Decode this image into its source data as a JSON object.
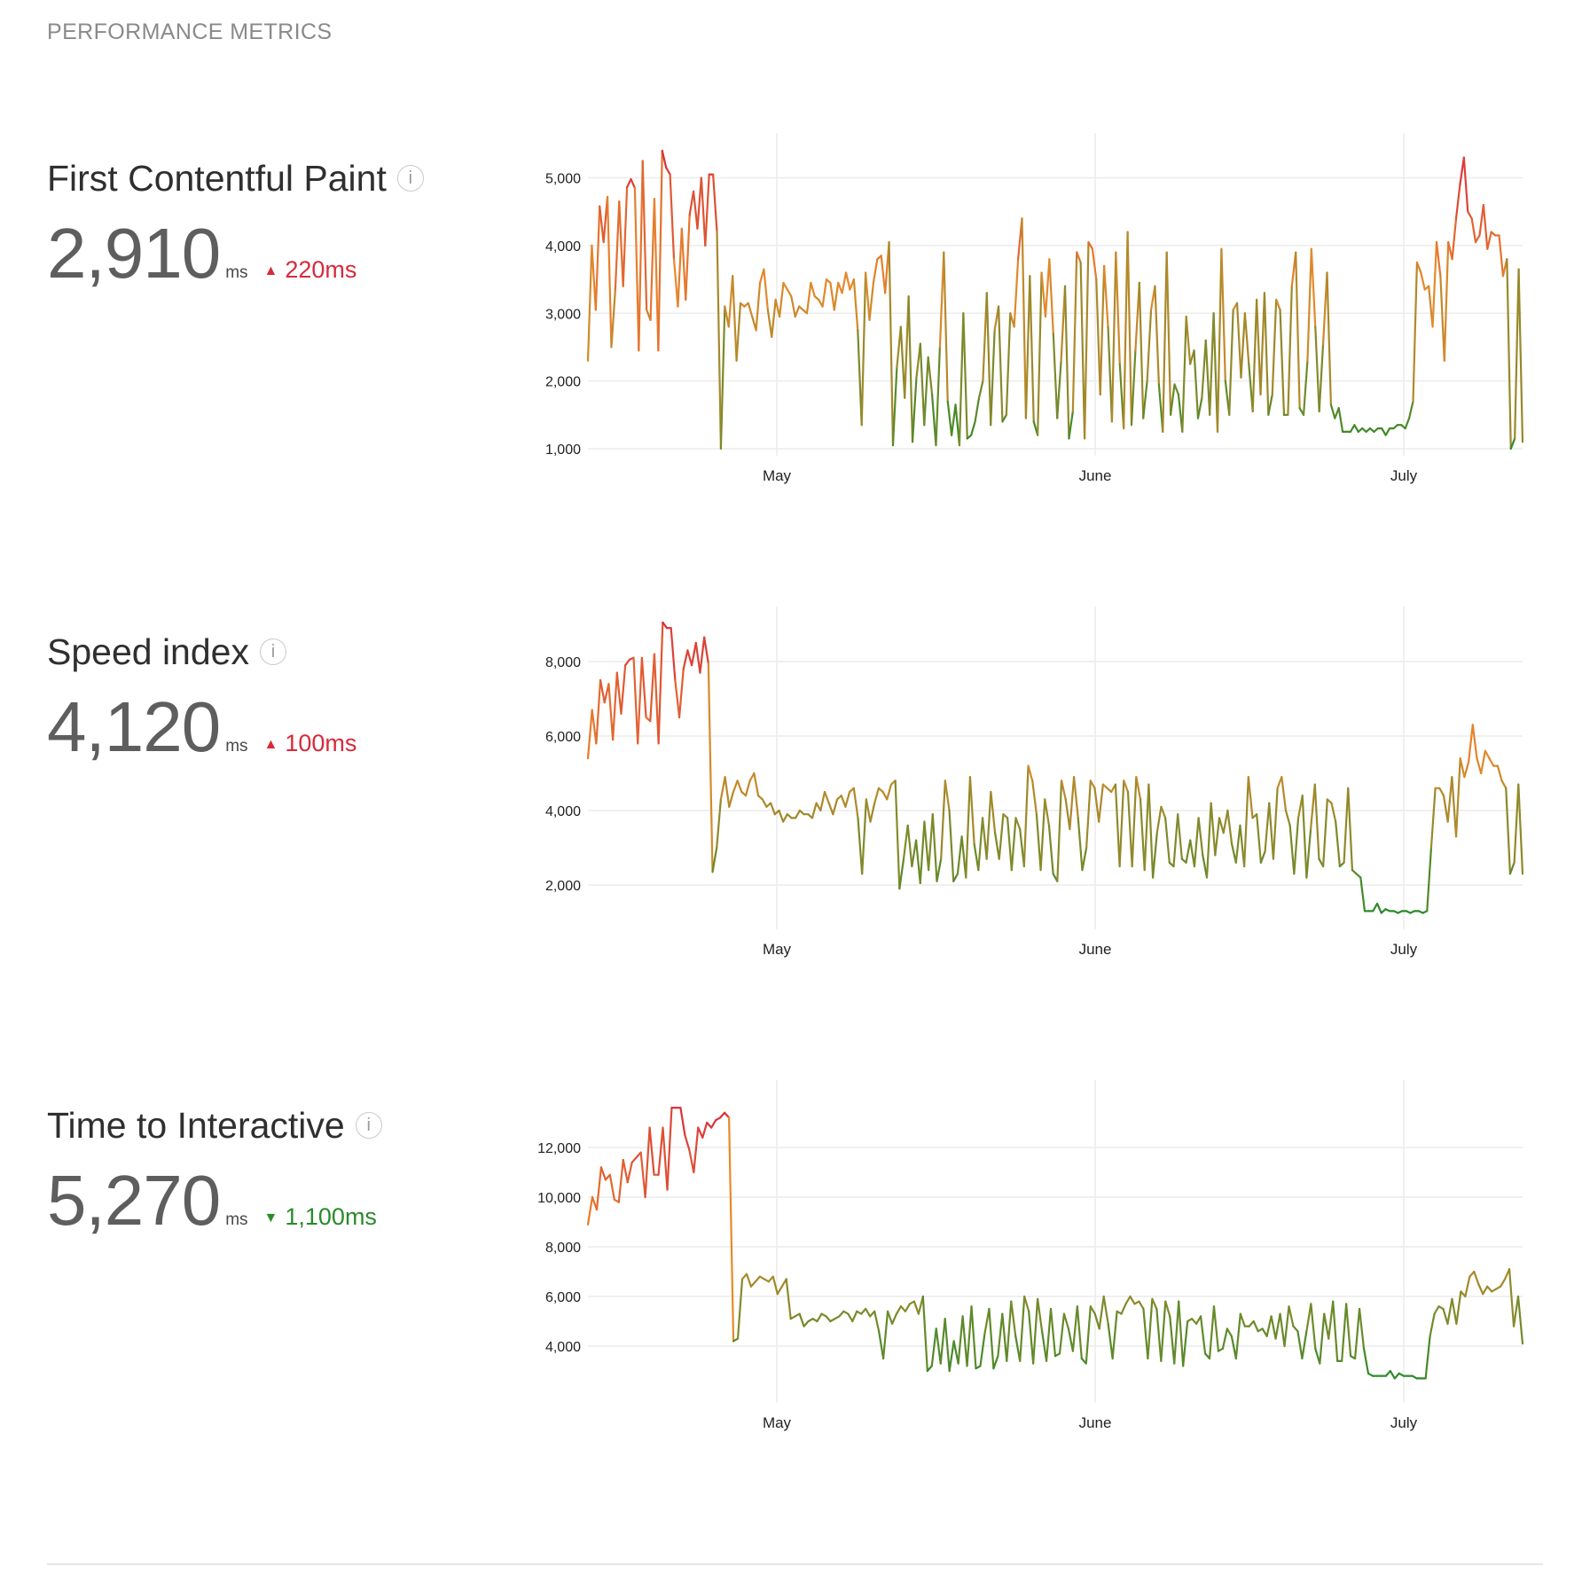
{
  "header": {
    "title": "PERFORMANCE METRICS"
  },
  "metrics": [
    {
      "id": "fcp",
      "name": "First Contentful Paint",
      "info_icon": "info-icon",
      "value": "2,910",
      "unit": "ms",
      "delta": {
        "direction": "up",
        "text": "220ms",
        "color": "#d8293b",
        "icon": "triangle-up-icon"
      },
      "chart_data": {
        "type": "line",
        "x_ticks": [
          "May",
          "June",
          "July"
        ],
        "y_ticks": [
          "1,000",
          "2,000",
          "3,000",
          "4,000",
          "5,000"
        ],
        "ylim": [
          1000,
          5400
        ],
        "color_scale": {
          "low": "#2a8a2a",
          "mid": "#e8892a",
          "high": "#d8293b"
        },
        "series": [
          {
            "values": [
              2300,
              4000,
              3050,
              4580,
              4050,
              4720,
              2500,
              3350,
              4650,
              3400,
              4860,
              4980,
              4850,
              2450,
              5250,
              3050,
              2900,
              4690,
              2450,
              5400,
              5150,
              5050,
              3800,
              3100,
              4250,
              3200,
              4450,
              4800,
              4250,
              5000,
              4000,
              5050,
              5050,
              4200,
              1000,
              3100,
              2800,
              3550,
              2300,
              3150,
              3100,
              3150,
              2950,
              2750,
              3450,
              3650,
              3050,
              2650,
              3200,
              2950,
              3450,
              3350,
              3250,
              2950,
              3100,
              3050,
              3000,
              3450,
              3250,
              3200,
              3100,
              3500,
              3450,
              3050,
              3450,
              3300,
              3600,
              3350,
              3500,
              2750,
              1350,
              3600,
              2900,
              3450,
              3800,
              3850,
              3300,
              4050,
              1050,
              2200,
              2800,
              1750,
              3250,
              1100,
              2050,
              2550,
              1350,
              2350,
              1800,
              1050,
              2500,
              3900,
              1700,
              1200,
              1650,
              1050,
              3000,
              1150,
              1200,
              1400,
              1750,
              2000,
              3300,
              1350,
              2750,
              3100,
              1400,
              1500,
              3000,
              2800,
              3800,
              4400,
              1450,
              3550,
              1400,
              1200,
              3600,
              2950,
              3800,
              2700,
              1450,
              2300,
              3400,
              1150,
              1550,
              3900,
              3750,
              1150,
              4050,
              3950,
              3500,
              1800,
              3700,
              2800,
              1400,
              3900,
              2250,
              1300,
              4200,
              1350,
              2450,
              3450,
              1450,
              2000,
              3050,
              3400,
              1950,
              1250,
              3900,
              1500,
              1950,
              1800,
              1250,
              2950,
              2250,
              2450,
              1450,
              1750,
              2600,
              1500,
              3000,
              1250,
              3950,
              2000,
              1500,
              3050,
              3150,
              2050,
              3000,
              2250,
              1550,
              3200,
              1800,
              3300,
              1500,
              1800,
              3200,
              3050,
              1500,
              1500,
              3400,
              3900,
              1600,
              1500,
              2300,
              3950,
              2800,
              1550,
              2550,
              3600,
              1650,
              1450,
              1600,
              1250,
              1250,
              1250,
              1350,
              1250,
              1300,
              1250,
              1300,
              1250,
              1300,
              1300,
              1200,
              1300,
              1300,
              1350,
              1350,
              1300,
              1450,
              1700,
              3750,
              3600,
              3350,
              3400,
              2800,
              4050,
              3550,
              2300,
              4050,
              3800,
              4400,
              4900,
              5300,
              4500,
              4400,
              4050,
              4150,
              4600,
              3950,
              4200,
              4150,
              4150,
              3550,
              3800,
              1000,
              1150,
              3650,
              1100
            ]
          }
        ]
      }
    },
    {
      "id": "si",
      "name": "Speed index",
      "info_icon": "info-icon",
      "value": "4,120",
      "unit": "ms",
      "delta": {
        "direction": "up",
        "text": "100ms",
        "color": "#d8293b",
        "icon": "triangle-up-icon"
      },
      "chart_data": {
        "type": "line",
        "x_ticks": [
          "May",
          "June",
          "July"
        ],
        "y_ticks": [
          "2,000",
          "4,000",
          "6,000",
          "8,000"
        ],
        "ylim": [
          1000,
          9000
        ],
        "color_scale": {
          "low": "#2a8a2a",
          "mid": "#e8892a",
          "high": "#d8293b"
        },
        "series": [
          {
            "values": [
              5400,
              6700,
              5800,
              7500,
              6900,
              7400,
              5900,
              7700,
              6600,
              7900,
              8050,
              8100,
              5800,
              8100,
              6500,
              6400,
              8200,
              5800,
              9050,
              8900,
              8900,
              7500,
              6500,
              7800,
              8300,
              7900,
              8500,
              7700,
              8650,
              7950,
              2350,
              3000,
              4300,
              4900,
              4100,
              4500,
              4800,
              4500,
              4400,
              4800,
              5000,
              4400,
              4300,
              4100,
              4200,
              3900,
              4000,
              3700,
              3900,
              3800,
              3800,
              4000,
              3900,
              3900,
              3800,
              4200,
              4000,
              4500,
              4200,
              3900,
              4300,
              4400,
              4100,
              4500,
              4600,
              3800,
              2300,
              4300,
              3700,
              4200,
              4600,
              4500,
              4300,
              4700,
              4800,
              1900,
              2700,
              3600,
              2500,
              3200,
              2050,
              3700,
              2400,
              3900,
              2100,
              2700,
              4800,
              4000,
              2100,
              2300,
              3300,
              2200,
              4900,
              3100,
              2400,
              3800,
              2700,
              4500,
              3400,
              2700,
              3900,
              3800,
              2400,
              3800,
              3500,
              2500,
              5200,
              4800,
              3900,
              2400,
              4300,
              3600,
              2300,
              2100,
              4800,
              4300,
              3500,
              4900,
              3800,
              2400,
              3000,
              4800,
              4600,
              3700,
              4700,
              4600,
              4500,
              4700,
              2500,
              4800,
              4500,
              2500,
              4900,
              4300,
              2400,
              4700,
              2200,
              3400,
              4100,
              3800,
              2600,
              2500,
              3900,
              2700,
              2600,
              3200,
              2500,
              3800,
              2800,
              2200,
              4200,
              2800,
              3800,
              3400,
              4000,
              3100,
              2600,
              3600,
              2500,
              4900,
              3800,
              3900,
              2600,
              2900,
              4200,
              2700,
              4600,
              4900,
              4000,
              3600,
              2300,
              3800,
              4400,
              2200,
              3500,
              4700,
              2700,
              2500,
              4300,
              4200,
              3700,
              2500,
              2600,
              4600,
              2400,
              2300,
              2200,
              1300,
              1300,
              1300,
              1500,
              1250,
              1350,
              1300,
              1300,
              1250,
              1300,
              1300,
              1250,
              1300,
              1300,
              1250,
              1300,
              3000,
              4600,
              4600,
              4400,
              3700,
              4900,
              3300,
              5400,
              4900,
              5300,
              6300,
              5400,
              5000,
              5600,
              5400,
              5200,
              5200,
              4800,
              4600,
              2300,
              2600,
              4700,
              2300
            ]
          }
        ]
      }
    },
    {
      "id": "tti",
      "name": "Time to Interactive",
      "info_icon": "info-icon",
      "value": "5,270",
      "unit": "ms",
      "delta": {
        "direction": "down",
        "text": "1,100ms",
        "color": "#2a8a2a",
        "icon": "triangle-down-icon"
      },
      "chart_data": {
        "type": "line",
        "x_ticks": [
          "May",
          "June",
          "July"
        ],
        "y_ticks": [
          "4,000",
          "6,000",
          "8,000",
          "10,000",
          "12,000"
        ],
        "ylim": [
          2000,
          14000
        ],
        "color_scale": {
          "low": "#2a8a2a",
          "mid": "#e8892a",
          "high": "#d8293b"
        },
        "series": [
          {
            "values": [
              8900,
              10000,
              9500,
              11200,
              10700,
              10900,
              9900,
              9800,
              11500,
              10600,
              11400,
              11600,
              11800,
              10000,
              12800,
              10900,
              10900,
              12800,
              10300,
              13600,
              13600,
              13600,
              12500,
              11900,
              11000,
              12800,
              12400,
              13000,
              12800,
              13100,
              13200,
              13400,
              13200,
              4200,
              4300,
              6700,
              6900,
              6400,
              6600,
              6800,
              6700,
              6600,
              6800,
              6100,
              6400,
              6700,
              5100,
              5200,
              5300,
              4800,
              5000,
              5100,
              5000,
              5300,
              5200,
              5000,
              5100,
              5200,
              5400,
              5300,
              5000,
              5400,
              5300,
              5500,
              5200,
              5400,
              4600,
              3500,
              5400,
              4900,
              5300,
              5600,
              5400,
              5700,
              5800,
              5300,
              6000,
              3000,
              3200,
              4700,
              3300,
              5100,
              3000,
              4200,
              3300,
              5200,
              3200,
              5600,
              3100,
              3200,
              4500,
              5500,
              3100,
              3600,
              5300,
              3400,
              5800,
              4400,
              3400,
              6000,
              5400,
              3300,
              5900,
              4600,
              3400,
              5500,
              3600,
              3700,
              5300,
              4700,
              3800,
              5600,
              3500,
              3300,
              5600,
              5300,
              4700,
              6000,
              4900,
              3500,
              5400,
              5300,
              5700,
              6000,
              5700,
              5800,
              5500,
              3500,
              5900,
              5500,
              3400,
              5800,
              5200,
              3300,
              5800,
              3200,
              5000,
              5100,
              4900,
              5200,
              3700,
              3500,
              5600,
              3800,
              3900,
              4700,
              4400,
              3500,
              5300,
              4800,
              4800,
              5000,
              4600,
              4700,
              4400,
              5200,
              4300,
              5300,
              4000,
              5600,
              4800,
              4600,
              3500,
              4600,
              5700,
              3900,
              3300,
              5300,
              4300,
              5800,
              3400,
              3400,
              5700,
              3600,
              3500,
              5500,
              3900,
              2900,
              2800,
              2800,
              2800,
              2800,
              3000,
              2700,
              2900,
              2800,
              2800,
              2800,
              2700,
              2700,
              2700,
              4400,
              5300,
              5600,
              5500,
              4900,
              5900,
              4900,
              6200,
              6000,
              6800,
              7000,
              6500,
              6100,
              6400,
              6200,
              6300,
              6400,
              6700,
              7100,
              4800,
              6000,
              4100
            ]
          }
        ]
      }
    }
  ]
}
